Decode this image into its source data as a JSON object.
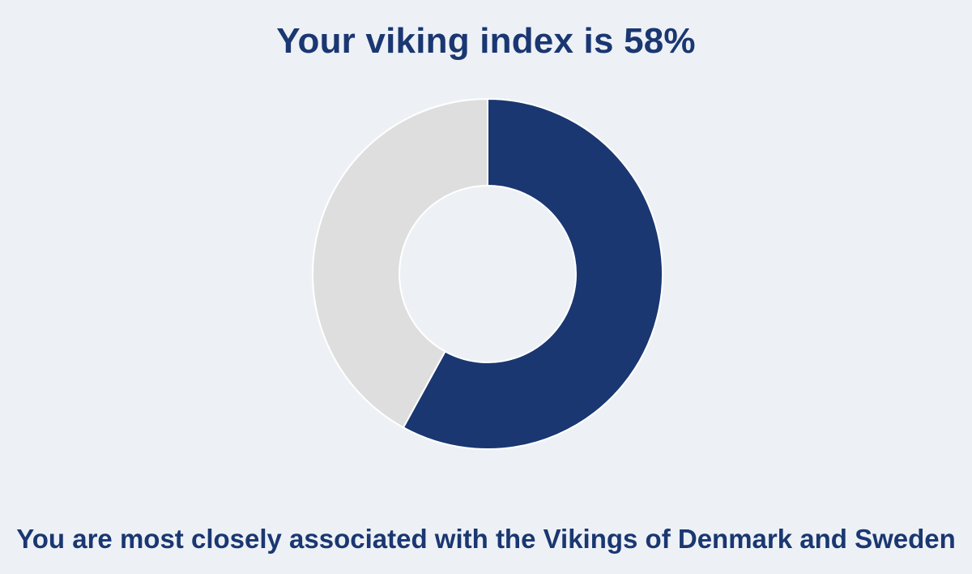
{
  "title": "Your viking index is 58%",
  "caption": "You are most closely associated with the Vikings of Denmark and Sweden",
  "colors": {
    "background": "#edf1f6",
    "primary": "#1a3771",
    "remainder": "#dedede",
    "separator": "#ffffff"
  },
  "chart_data": {
    "type": "pie",
    "subtype": "donut",
    "title": "Your viking index is 58%",
    "slices": [
      {
        "value": 58,
        "color": "#1a3771"
      },
      {
        "value": 42,
        "color": "#dedede"
      }
    ],
    "total": 100,
    "start_angle": "12 o'clock",
    "direction": "clockwise",
    "legend": "none"
  }
}
